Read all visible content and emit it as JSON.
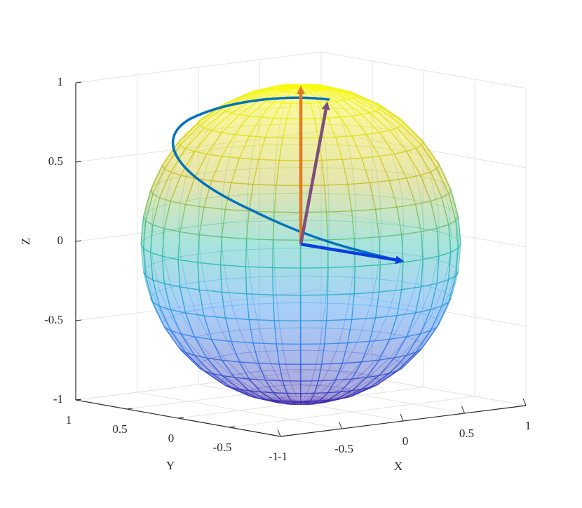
{
  "chart_data": {
    "type": "sphere3d",
    "xlabel": "X",
    "ylabel": "Y",
    "zlabel": "Z",
    "xlim": [
      -1,
      1
    ],
    "ylim": [
      -1,
      1
    ],
    "zlim": [
      -1,
      1
    ],
    "xticks": [
      -1,
      -0.5,
      0,
      0.5,
      1
    ],
    "yticks": [
      -1,
      -0.5,
      0,
      0.5,
      1
    ],
    "zticks": [
      -1,
      -0.5,
      0,
      0.5,
      1
    ],
    "grid": true,
    "vectors": [
      {
        "color": "#e07b22",
        "x": 0,
        "y": 0,
        "z": 1
      },
      {
        "color": "#7e4f7c",
        "x": 0.3,
        "y": 0.1,
        "z": 0.86
      },
      {
        "color": "#0a3de0",
        "x": 0.8,
        "y": -0.05,
        "z": -0.18
      }
    ]
  }
}
